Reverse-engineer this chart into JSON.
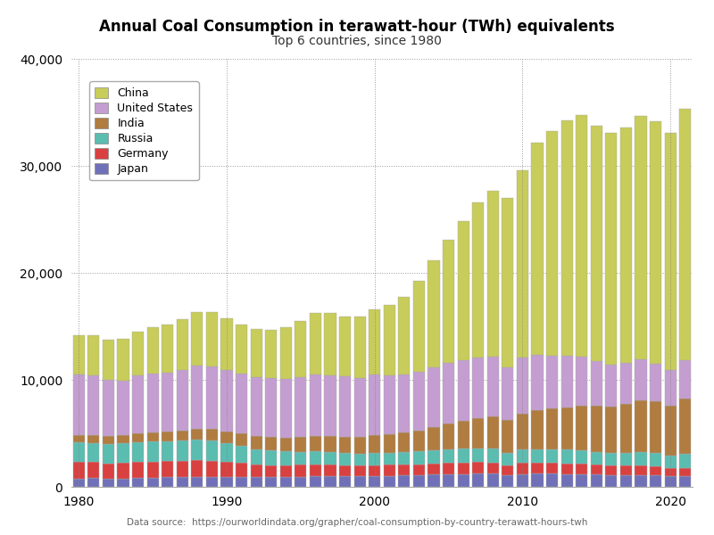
{
  "title": "Annual Coal Consumption in terawatt-hour (TWh) equivalents",
  "subtitle": "Top 6 countries, since 1980",
  "source": "Data source:  https://ourworldindata.org/grapher/coal-consumption-by-country-terawatt-hours-twh",
  "ylim": [
    0,
    40000
  ],
  "yticks": [
    0,
    10000,
    20000,
    30000,
    40000
  ],
  "ytick_labels": [
    "0",
    "10,000",
    "20,000",
    "30,000",
    "40,000"
  ],
  "years": [
    1980,
    1981,
    1982,
    1983,
    1984,
    1985,
    1986,
    1987,
    1988,
    1989,
    1990,
    1991,
    1992,
    1993,
    1994,
    1995,
    1996,
    1997,
    1998,
    1999,
    2000,
    2001,
    2002,
    2003,
    2004,
    2005,
    2006,
    2007,
    2008,
    2009,
    2010,
    2011,
    2012,
    2013,
    2014,
    2015,
    2016,
    2017,
    2018,
    2019,
    2020,
    2021
  ],
  "xticks": [
    1980,
    1990,
    2000,
    2010,
    2020
  ],
  "xtick_labels": [
    "1980",
    "1990",
    "2000",
    "2010",
    "2020"
  ],
  "colors": {
    "China": "#c8cc5a",
    "United States": "#c49ed0",
    "India": "#b07c40",
    "Russia": "#5bbcb0",
    "Germany": "#d94040",
    "Japan": "#7070b8"
  },
  "data": {
    "Japan": [
      780,
      800,
      760,
      780,
      820,
      850,
      880,
      900,
      940,
      940,
      920,
      900,
      890,
      890,
      900,
      940,
      960,
      980,
      970,
      980,
      1020,
      1040,
      1060,
      1100,
      1140,
      1180,
      1200,
      1220,
      1220,
      1080,
      1200,
      1230,
      1220,
      1200,
      1200,
      1150,
      1100,
      1100,
      1120,
      1080,
      990,
      1020
    ],
    "Germany": [
      1550,
      1520,
      1440,
      1450,
      1490,
      1510,
      1500,
      1510,
      1540,
      1500,
      1410,
      1310,
      1200,
      1150,
      1130,
      1110,
      1130,
      1090,
      1050,
      1010,
      1000,
      1010,
      1010,
      1020,
      1040,
      1060,
      1080,
      1080,
      1040,
      960,
      1020,
      1010,
      1000,
      1000,
      960,
      910,
      870,
      880,
      870,
      830,
      730,
      740
    ],
    "Russia": [
      1800,
      1800,
      1810,
      1820,
      1850,
      1880,
      1870,
      1890,
      1910,
      1900,
      1720,
      1600,
      1450,
      1370,
      1290,
      1240,
      1230,
      1200,
      1150,
      1120,
      1140,
      1140,
      1150,
      1180,
      1220,
      1250,
      1280,
      1290,
      1290,
      1160,
      1260,
      1290,
      1290,
      1260,
      1240,
      1220,
      1200,
      1220,
      1270,
      1260,
      1220,
      1310
    ],
    "India": [
      700,
      730,
      770,
      800,
      840,
      880,
      930,
      980,
      1030,
      1090,
      1130,
      1170,
      1210,
      1230,
      1280,
      1340,
      1400,
      1470,
      1530,
      1570,
      1640,
      1720,
      1840,
      1980,
      2180,
      2400,
      2600,
      2820,
      3020,
      3080,
      3380,
      3620,
      3800,
      3990,
      4190,
      4280,
      4320,
      4550,
      4820,
      4870,
      4660,
      5190
    ],
    "United States": [
      5700,
      5600,
      5200,
      5100,
      5400,
      5500,
      5500,
      5600,
      5900,
      5800,
      5700,
      5600,
      5500,
      5500,
      5500,
      5600,
      5800,
      5700,
      5600,
      5500,
      5700,
      5500,
      5400,
      5500,
      5600,
      5700,
      5700,
      5700,
      5600,
      4900,
      5200,
      5200,
      4900,
      4800,
      4600,
      4200,
      3900,
      3800,
      3800,
      3500,
      3300,
      3600
    ],
    "China": [
      3600,
      3700,
      3750,
      3850,
      4100,
      4300,
      4500,
      4800,
      5000,
      5100,
      4900,
      4600,
      4500,
      4500,
      4800,
      5300,
      5700,
      5800,
      5600,
      5700,
      6100,
      6600,
      7300,
      8500,
      10000,
      11500,
      13000,
      14500,
      15500,
      15800,
      17500,
      19800,
      21000,
      22000,
      22600,
      22000,
      21700,
      22000,
      22800,
      22600,
      22200,
      23500
    ]
  },
  "legend_order": [
    "China",
    "United States",
    "India",
    "Russia",
    "Germany",
    "Japan"
  ]
}
